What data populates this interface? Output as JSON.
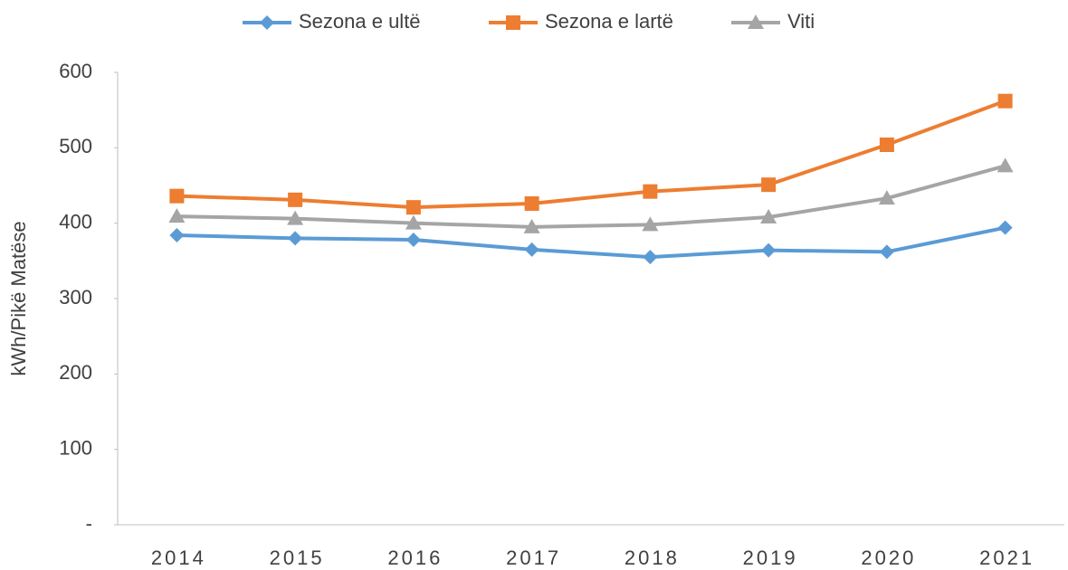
{
  "chart_data": {
    "type": "line",
    "y_label": "kWh/Pikë Matëse",
    "categories": [
      "2014",
      "2015",
      "2016",
      "2017",
      "2018",
      "2019",
      "2020",
      "2021"
    ],
    "series": [
      {
        "name": "Sezona e ultë",
        "color": "#5b9bd5",
        "marker": "diamond",
        "values": [
          384,
          380,
          378,
          365,
          355,
          364,
          362,
          394
        ]
      },
      {
        "name": "Sezona e lartë",
        "color": "#ed7d31",
        "marker": "square",
        "values": [
          436,
          431,
          421,
          426,
          442,
          451,
          504,
          562
        ]
      },
      {
        "name": "Viti",
        "color": "#a5a5a5",
        "marker": "triangle",
        "values": [
          409,
          406,
          400,
          395,
          398,
          408,
          433,
          476
        ]
      }
    ],
    "ylim": [
      0,
      600
    ],
    "yticks": [
      {
        "value": 0,
        "label": "-"
      },
      100,
      200,
      300,
      400,
      500,
      600
    ],
    "legend": "top",
    "grid": false
  }
}
